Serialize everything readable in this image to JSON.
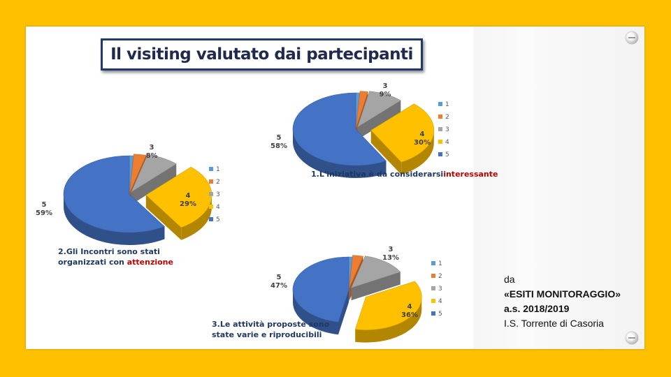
{
  "slide_title": "Il visiting valutato dai partecipanti",
  "source": {
    "line1": "da",
    "line2": "«ESITI MONITORAGGIO»",
    "line3": "a.s. 2018/2019",
    "line4": "I.S. Torrente di Casoria"
  },
  "colors": {
    "1": "#5B9BD5",
    "2": "#ED7D31",
    "3": "#A5A5A5",
    "4": "#FFC000",
    "5": "#4472C4"
  },
  "chart_data": [
    {
      "type": "pie",
      "title": "1.L'iniziativa è da considerarsi interessante",
      "title_line1": "1.L'iniziativa è da considerarsi",
      "title_line2_plain": "",
      "title_line2_red": "interessante",
      "categories": [
        "1",
        "2",
        "3",
        "4",
        "5"
      ],
      "values": [
        1,
        2,
        9,
        30,
        58
      ],
      "labels": [
        {
          "cat": "3",
          "value": "9%"
        },
        {
          "cat": "4",
          "value": "30%"
        },
        {
          "cat": "5",
          "value": "58%"
        }
      ],
      "legend": [
        "1",
        "2",
        "3",
        "4",
        "5"
      ]
    },
    {
      "type": "pie",
      "title": "2.Gli Incontri sono stati organizzati con attenzione",
      "title_line1": "2.Gli Incontri sono stati",
      "title_line2_plain": "organizzati con ",
      "title_line2_red": "attenzione",
      "categories": [
        "1",
        "2",
        "3",
        "4",
        "5"
      ],
      "values": [
        1,
        3,
        8,
        29,
        59
      ],
      "labels": [
        {
          "cat": "3",
          "value": "8%"
        },
        {
          "cat": "4",
          "value": "29%"
        },
        {
          "cat": "5",
          "value": "59%"
        }
      ],
      "legend": [
        "1",
        "2",
        "3",
        "4",
        "5"
      ]
    },
    {
      "type": "pie",
      "title": "3.Le attività proposte sono state varie e riproducibili",
      "title_line1": "3.Le attività proposte sono",
      "title_line2_plain": "state varie e riproducibili",
      "title_line2_red": "",
      "categories": [
        "1",
        "2",
        "3",
        "4",
        "5"
      ],
      "values": [
        1,
        3,
        13,
        36,
        47
      ],
      "labels": [
        {
          "cat": "3",
          "value": "13%"
        },
        {
          "cat": "4",
          "value": "36%"
        },
        {
          "cat": "5",
          "value": "47%"
        }
      ],
      "legend": [
        "1",
        "2",
        "3",
        "4",
        "5"
      ]
    }
  ]
}
